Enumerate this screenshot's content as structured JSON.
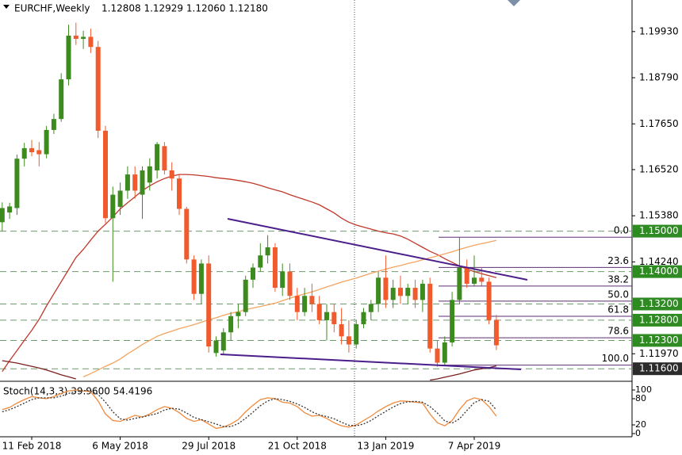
{
  "chart_data": {
    "type": "candlestick",
    "title": "EURCHF,Weekly",
    "ohlc_label": "1.12808 1.12929 1.12060 1.12180",
    "categories": [
      null,
      null,
      null,
      null,
      "11 Feb 2018",
      null,
      null,
      null,
      null,
      null,
      null,
      null,
      null,
      null,
      null,
      null,
      "6 May 2018",
      null,
      null,
      null,
      null,
      null,
      null,
      null,
      null,
      null,
      null,
      null,
      "29 Jul 2018",
      null,
      null,
      null,
      null,
      null,
      null,
      null,
      null,
      null,
      null,
      null,
      "21 Oct 2018",
      null,
      null,
      null,
      null,
      null,
      null,
      null,
      null,
      null,
      null,
      null,
      "13 Jan 2019",
      null,
      null,
      null,
      null,
      null,
      null,
      null,
      null,
      null,
      null,
      null,
      "7 Apr 2019",
      null,
      null,
      null
    ],
    "open": [
      1.1522,
      1.1546,
      1.1557,
      1.1679,
      1.1705,
      1.17,
      1.169,
      1.175,
      1.1777,
      1.1875,
      1.1983,
      1.1975,
      1.198,
      1.1955,
      1.1748,
      1.1532,
      1.156,
      1.16,
      1.164,
      1.159,
      1.162,
      1.165,
      1.171,
      1.165,
      1.163,
      1.1555,
      1.143,
      1.1345,
      1.142,
      1.1199,
      1.1205,
      1.125,
      1.129,
      1.13,
      1.138,
      1.141,
      1.144,
      1.146,
      1.136,
      1.14,
      1.134,
      1.13,
      1.134,
      1.132,
      1.128,
      1.13,
      1.127,
      1.124,
      1.122,
      1.127,
      1.13,
      1.132,
      1.1385,
      1.133,
      1.136,
      1.134,
      1.136,
      1.133,
      1.137,
      1.121,
      1.1175,
      1.1225,
      1.133,
      1.141,
      1.137,
      1.1385,
      1.1375,
      1.12808
    ],
    "high": [
      1.1571,
      1.157,
      1.1689,
      1.1718,
      1.1725,
      1.172,
      1.176,
      1.179,
      1.189,
      1.201,
      1.2015,
      1.1995,
      1.2,
      1.197,
      1.176,
      1.161,
      1.162,
      1.166,
      1.166,
      1.166,
      1.168,
      1.172,
      1.172,
      1.167,
      1.164,
      1.156,
      1.144,
      1.143,
      1.144,
      1.124,
      1.126,
      1.13,
      1.132,
      1.139,
      1.142,
      1.147,
      1.149,
      1.147,
      1.142,
      1.142,
      1.136,
      1.136,
      1.137,
      1.134,
      1.132,
      1.132,
      1.131,
      1.128,
      1.128,
      1.131,
      1.133,
      1.14,
      1.144,
      1.138,
      1.139,
      1.137,
      1.138,
      1.138,
      1.1385,
      1.123,
      1.124,
      1.135,
      1.1485,
      1.143,
      1.144,
      1.141,
      1.1385,
      1.12929
    ],
    "low": [
      1.1499,
      1.153,
      1.154,
      1.166,
      1.1685,
      1.166,
      1.168,
      1.174,
      1.177,
      1.186,
      1.196,
      1.195,
      1.194,
      1.173,
      1.152,
      1.1375,
      1.154,
      1.158,
      1.158,
      1.153,
      1.16,
      1.163,
      1.164,
      1.16,
      1.154,
      1.142,
      1.133,
      1.132,
      1.12,
      1.119,
      1.1195,
      1.123,
      1.126,
      1.129,
      1.136,
      1.14,
      1.142,
      1.135,
      1.134,
      1.133,
      1.128,
      1.129,
      1.13,
      1.127,
      1.123,
      1.125,
      1.122,
      1.12,
      1.121,
      1.126,
      1.128,
      1.13,
      1.131,
      1.131,
      1.132,
      1.132,
      1.131,
      1.13,
      1.12,
      1.1165,
      1.117,
      1.1215,
      1.132,
      1.136,
      1.1365,
      1.1365,
      1.127,
      1.1206
    ],
    "close": [
      1.1557,
      1.1561,
      1.1679,
      1.1705,
      1.1695,
      1.169,
      1.175,
      1.1777,
      1.1875,
      1.1983,
      1.1975,
      1.198,
      1.1955,
      1.1748,
      1.1532,
      1.159,
      1.16,
      1.164,
      1.16,
      1.165,
      1.166,
      1.1715,
      1.165,
      1.163,
      1.1555,
      1.143,
      1.1345,
      1.142,
      1.1215,
      1.123,
      1.125,
      1.129,
      1.13,
      1.138,
      1.141,
      1.144,
      1.146,
      1.136,
      1.14,
      1.134,
      1.13,
      1.134,
      1.132,
      1.128,
      1.13,
      1.127,
      1.124,
      1.122,
      1.127,
      1.13,
      1.132,
      1.1385,
      1.133,
      1.136,
      1.134,
      1.136,
      1.133,
      1.137,
      1.121,
      1.1175,
      1.1225,
      1.133,
      1.141,
      1.137,
      1.1385,
      1.1375,
      1.12808,
      1.1218
    ],
    "up_color": "#3d8b1f",
    "down_color": "#f05a2c",
    "ylim": [
      1.1131,
      1.2071
    ],
    "yticks": [
      {
        "value": 1.1993,
        "label": "1.19930"
      },
      {
        "value": 1.1879,
        "label": "1.18790"
      },
      {
        "value": 1.1765,
        "label": "1.17650"
      },
      {
        "value": 1.1652,
        "label": "1.16520"
      },
      {
        "value": 1.1538,
        "label": "1.15380"
      },
      {
        "value": 1.1424,
        "label": "1.14240"
      },
      {
        "value": 1.1197,
        "label": "1.11970"
      }
    ],
    "moving_averages": [
      {
        "color": "#c0392b",
        "values": [
          1.1153,
          1.118,
          1.1205,
          1.123,
          1.1255,
          1.1282,
          1.1315,
          1.1345,
          1.1375,
          1.1405,
          1.1435,
          1.1455,
          1.1478,
          1.15,
          1.1517,
          1.1535,
          1.1555,
          1.157,
          1.1585,
          1.16,
          1.1612,
          1.1622,
          1.163,
          1.1636,
          1.164,
          1.164,
          1.1639,
          1.1637,
          1.1635,
          1.1632,
          1.163,
          1.1628,
          1.1625,
          1.1622,
          1.1618,
          1.1613,
          1.1607,
          1.1602,
          1.1597,
          1.159,
          1.1584,
          1.1578,
          1.1572,
          1.1565,
          1.1555,
          1.1545,
          1.1532,
          1.1522,
          1.1515,
          1.151,
          1.1505,
          1.15,
          1.1496,
          1.1493,
          1.1488,
          1.148,
          1.147,
          1.146,
          1.145,
          1.1442,
          1.1432,
          1.1423,
          1.1414,
          1.1406,
          1.14,
          1.1395,
          1.139,
          1.1385
        ]
      },
      {
        "color": "#f4a460",
        "values": [
          null,
          null,
          null,
          null,
          null,
          null,
          null,
          null,
          null,
          null,
          null,
          1.114,
          1.1148,
          1.1157,
          1.1166,
          1.1174,
          1.1184,
          1.1197,
          1.1208,
          1.122,
          1.123,
          1.124,
          1.1247,
          1.1253,
          1.1259,
          1.1264,
          1.1269,
          1.1275,
          1.1281,
          1.1286,
          1.1292,
          1.1297,
          1.1301,
          1.1306,
          1.131,
          1.1314,
          1.1318,
          1.1322,
          1.1328,
          1.1334,
          1.134,
          1.1345,
          1.135,
          1.1356,
          1.1362,
          1.1368,
          1.1374,
          1.1379,
          1.1384,
          1.139,
          1.1396,
          1.1401,
          1.1406,
          1.1411,
          1.1415,
          1.142,
          1.1424,
          1.1429,
          1.1434,
          1.1439,
          1.1444,
          1.1449,
          1.1455,
          1.146,
          1.1465,
          1.1469,
          1.1473,
          1.1477
        ]
      },
      {
        "color": "#7b1f1f",
        "values": [
          1.118,
          1.1177,
          1.1174,
          1.117,
          1.1166,
          1.1162,
          1.1157,
          1.1151,
          1.1145,
          1.114,
          1.1135,
          null,
          null,
          null,
          null,
          null,
          null,
          null,
          null,
          null,
          null,
          null,
          null,
          null,
          null,
          null,
          null,
          null,
          null,
          null,
          null,
          null,
          null,
          null,
          null,
          null,
          null,
          null,
          null,
          null,
          null,
          null,
          null,
          null,
          null,
          null,
          null,
          null,
          null,
          null,
          null,
          null,
          null,
          null,
          null,
          null,
          null,
          null,
          1.1132,
          1.1135,
          1.1139,
          1.1143,
          1.1147,
          1.1152,
          1.1157,
          1.116,
          1.1163,
          1.1167
        ]
      }
    ],
    "levels": [
      {
        "value": 1.15,
        "label": "1.15000",
        "color": "#2e8b22"
      },
      {
        "value": 1.14,
        "label": "1.14000",
        "color": "#2e8b22"
      },
      {
        "value": 1.132,
        "label": "1.13200",
        "color": "#2e8b22"
      },
      {
        "value": 1.128,
        "label": "1.12800",
        "color": "#2e8b22"
      },
      {
        "value": 1.123,
        "label": "1.12300",
        "color": "#2e8b22"
      },
      {
        "value": 1.116,
        "label": "1.11600",
        "color": "#2b2b2b"
      }
    ],
    "fibonacci": {
      "high": 1.1485,
      "low": 1.1169,
      "color": "#5b2f72",
      "levels": [
        {
          "value": 0,
          "label": "0.0"
        },
        {
          "value": 23.6,
          "label": "23.6"
        },
        {
          "value": 38.2,
          "label": "38.2"
        },
        {
          "value": 50,
          "label": "50.0"
        },
        {
          "value": 61.8,
          "label": "61.8"
        },
        {
          "value": 78.6,
          "label": "78.6"
        },
        {
          "value": 100,
          "label": "100.0"
        }
      ]
    },
    "indicator": {
      "title": "Stoch(14,3,3) 39.9600 54.4196",
      "ylim": [
        0,
        100
      ],
      "yticks": [
        100,
        80,
        20,
        0
      ],
      "series": [
        {
          "color": "#f08a3c",
          "dashed": false,
          "values": [
            55,
            60,
            70,
            78,
            85,
            82,
            80,
            85,
            92,
            98,
            100,
            98,
            96,
            75,
            45,
            30,
            28,
            35,
            42,
            38,
            45,
            55,
            62,
            58,
            48,
            35,
            28,
            32,
            22,
            12,
            15,
            22,
            32,
            50,
            65,
            78,
            82,
            80,
            72,
            70,
            62,
            48,
            40,
            42,
            35,
            25,
            18,
            15,
            20,
            30,
            40,
            52,
            62,
            70,
            75,
            74,
            72,
            70,
            45,
            25,
            18,
            30,
            55,
            75,
            82,
            78,
            62,
            39.96
          ]
        },
        {
          "color": "#333333",
          "dashed": true,
          "values": [
            50,
            55,
            62,
            70,
            78,
            82,
            82,
            82,
            86,
            92,
            97,
            99,
            98,
            90,
            72,
            50,
            34,
            31,
            35,
            38,
            42,
            46,
            54,
            58,
            56,
            47,
            37,
            32,
            27,
            22,
            16,
            16,
            23,
            35,
            49,
            64,
            75,
            80,
            78,
            74,
            68,
            60,
            50,
            43,
            39,
            34,
            26,
            19,
            18,
            22,
            30,
            41,
            51,
            61,
            69,
            73,
            74,
            72,
            62,
            47,
            29,
            24,
            34,
            53,
            71,
            78,
            74,
            54.4196
          ]
        }
      ]
    }
  }
}
